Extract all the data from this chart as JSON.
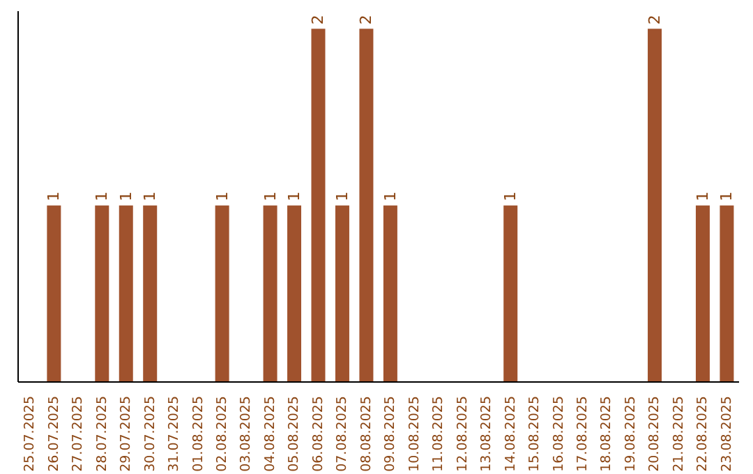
{
  "chart_data": {
    "type": "bar",
    "categories": [
      "25.07.2025",
      "26.07.2025",
      "27.07.2025",
      "28.07.2025",
      "29.07.2025",
      "30.07.2025",
      "31.07.2025",
      "01.08.2025",
      "02.08.2025",
      "03.08.2025",
      "04.08.2025",
      "05.08.2025",
      "06.08.2025",
      "07.08.2025",
      "08.08.2025",
      "09.08.2025",
      "10.08.2025",
      "11.08.2025",
      "12.08.2025",
      "13.08.2025",
      "14.08.2025",
      "15.08.2025",
      "16.08.2025",
      "17.08.2025",
      "18.08.2025",
      "19.08.2025",
      "20.08.2025",
      "21.08.2025",
      "22.08.2025",
      "23.08.2025"
    ],
    "values": [
      0,
      1,
      0,
      1,
      1,
      1,
      0,
      0,
      1,
      0,
      1,
      1,
      2,
      1,
      2,
      1,
      0,
      0,
      0,
      0,
      1,
      0,
      0,
      0,
      0,
      0,
      2,
      0,
      1,
      1
    ],
    "value_labels": [
      null,
      "1",
      null,
      "1",
      "1",
      "1",
      null,
      null,
      "1",
      null,
      "1",
      "1",
      "2",
      "1",
      "2",
      "1",
      null,
      null,
      null,
      null,
      "1",
      null,
      null,
      null,
      null,
      null,
      "2",
      null,
      "1",
      "1"
    ],
    "color": "#a0522d",
    "grid": false,
    "legend": false,
    "tick_labels": "x"
  }
}
